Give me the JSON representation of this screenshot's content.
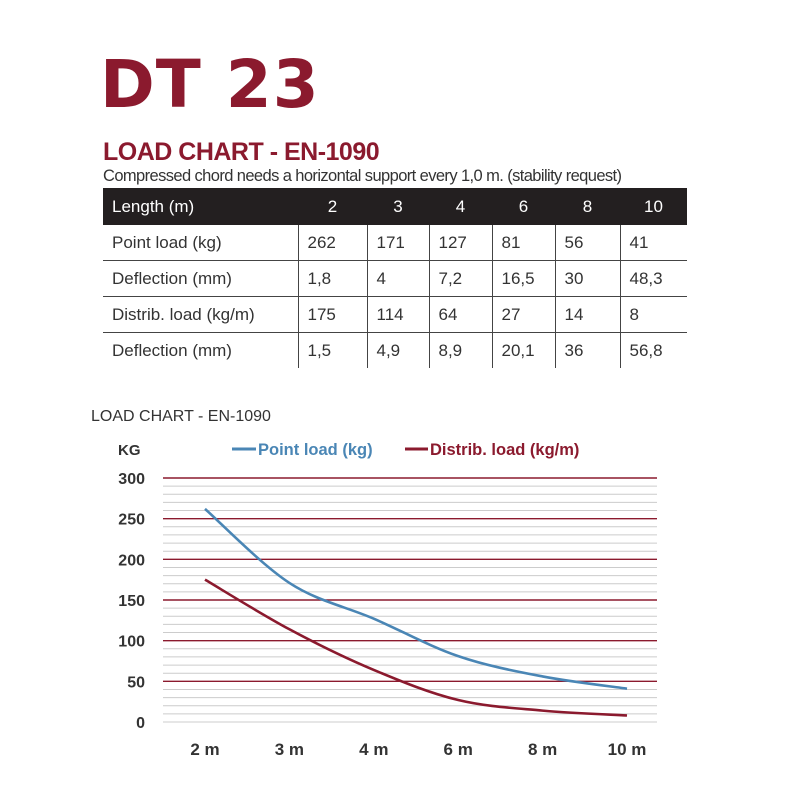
{
  "title": "DT 23",
  "subtitle": "LOAD CHART - EN-1090",
  "caption": "Compressed chord needs a horizontal support every 1,0 m. (stability request)",
  "table": {
    "header": [
      "Length (m)",
      "2",
      "3",
      "4",
      "6",
      "8",
      "10"
    ],
    "rows": [
      [
        "Point load (kg)",
        "262",
        "171",
        "127",
        "81",
        "56",
        "41"
      ],
      [
        "Deflection (mm)",
        "1,8",
        "4",
        "7,2",
        "16,5",
        "30",
        "48,3"
      ],
      [
        "Distrib. load (kg/m)",
        "175",
        "114",
        "64",
        "27",
        "14",
        "8"
      ],
      [
        "Deflection (mm)",
        "1,5",
        "4,9",
        "8,9",
        "20,1",
        "36",
        "56,8"
      ]
    ]
  },
  "chart_data": {
    "type": "line",
    "title": "LOAD CHART - EN-1090",
    "ylabel": "KG",
    "categories": [
      "2 m",
      "3 m",
      "4 m",
      "6 m",
      "8 m",
      "10 m"
    ],
    "ylim": [
      0,
      300
    ],
    "yticks": [
      "0",
      "50",
      "100",
      "150",
      "200",
      "250",
      "300"
    ],
    "grid": true,
    "legend": "top",
    "series": [
      {
        "name": "Point load (kg)",
        "values": [
          262,
          171,
          127,
          81,
          56,
          41
        ],
        "color": "#4a86b5"
      },
      {
        "name": "Distrib. load (kg/m)",
        "values": [
          175,
          114,
          64,
          27,
          14,
          8
        ],
        "color": "#8b1a2e"
      }
    ],
    "major_grid_color": "#8b1a2e",
    "minor_grid_color": "#cccccc"
  }
}
